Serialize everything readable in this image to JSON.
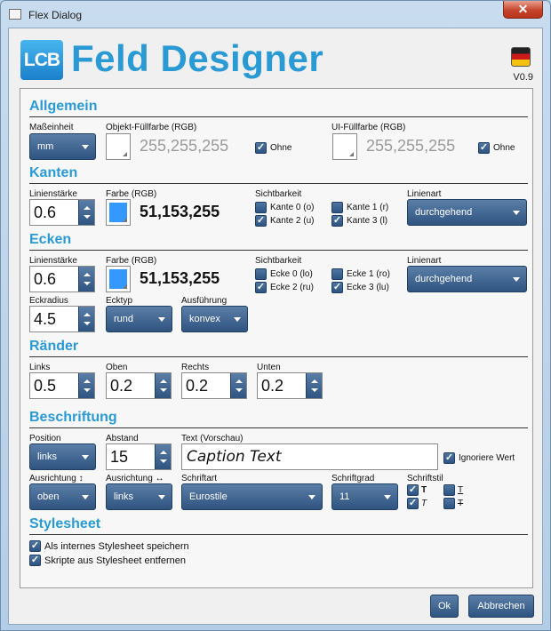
{
  "window": {
    "title": "Flex Dialog",
    "close_label": "✕"
  },
  "header": {
    "logo": "LCB",
    "title": "Feld Designer",
    "version": "V0.9"
  },
  "sections": {
    "allgemein": "Allgemein",
    "kanten": "Kanten",
    "ecken": "Ecken",
    "raender": "Ränder",
    "beschriftung": "Beschriftung",
    "stylesheet": "Stylesheet"
  },
  "allgemein": {
    "unit_label": "Maßeinheit",
    "unit_value": "mm",
    "obj_fill_label": "Objekt-Füllfarbe (RGB)",
    "obj_fill_value": "255,255,255",
    "obj_fill_color": "#ffffff",
    "obj_none_label": "Ohne",
    "obj_none_checked": true,
    "ui_fill_label": "UI-Füllfarbe (RGB)",
    "ui_fill_value": "255,255,255",
    "ui_fill_color": "#ffffff",
    "ui_none_label": "Ohne",
    "ui_none_checked": true
  },
  "kanten": {
    "width_label": "Linienstärke",
    "width_value": "0.6",
    "color_label": "Farbe (RGB)",
    "color_value": "51,153,255",
    "color_hex": "#3399ff",
    "vis_label": "Sichtbarkeit",
    "vis": [
      {
        "label": "Kante 0 (o)",
        "checked": false
      },
      {
        "label": "Kante 1 (r)",
        "checked": false
      },
      {
        "label": "Kante 2 (u)",
        "checked": true
      },
      {
        "label": "Kante 3 (l)",
        "checked": true
      }
    ],
    "style_label": "Linienart",
    "style_value": "durchgehend"
  },
  "ecken": {
    "width_label": "Linienstärke",
    "width_value": "0.6",
    "color_label": "Farbe (RGB)",
    "color_value": "51,153,255",
    "color_hex": "#3399ff",
    "vis_label": "Sichtbarkeit",
    "vis": [
      {
        "label": "Ecke 0 (lo)",
        "checked": false
      },
      {
        "label": "Ecke 1 (ro)",
        "checked": false
      },
      {
        "label": "Ecke 2 (ru)",
        "checked": true
      },
      {
        "label": "Ecke 3 (lu)",
        "checked": true
      }
    ],
    "style_label": "Linienart",
    "style_value": "durchgehend",
    "radius_label": "Eckradius",
    "radius_value": "4.5",
    "type_label": "Ecktyp",
    "type_value": "rund",
    "exec_label": "Ausführung",
    "exec_value": "konvex"
  },
  "raender": {
    "left_label": "Links",
    "left_value": "0.5",
    "top_label": "Oben",
    "top_value": "0.2",
    "right_label": "Rechts",
    "right_value": "0.2",
    "bottom_label": "Unten",
    "bottom_value": "0.2"
  },
  "beschriftung": {
    "pos_label": "Position",
    "pos_value": "links",
    "dist_label": "Abstand",
    "dist_value": "15",
    "text_label": "Text (Vorschau)",
    "text_value": "Caption Text",
    "ignore_label": "Ignoriere Wert",
    "ignore_checked": true,
    "valign_label": "Ausrichtung ↕",
    "valign_value": "oben",
    "halign_label": "Ausrichtung ↔",
    "halign_value": "links",
    "font_label": "Schriftart",
    "font_value": "Eurostile",
    "size_label": "Schriftgrad",
    "size_value": "11",
    "style_label": "Schriftstil",
    "styles": [
      {
        "label": "T",
        "checked": true
      },
      {
        "label": "T",
        "checked": false
      },
      {
        "label": "T",
        "checked": true
      },
      {
        "label": "T",
        "checked": false
      }
    ]
  },
  "stylesheet": {
    "opt1": "Als internes Stylesheet speichern",
    "opt1_checked": true,
    "opt2": "Skripte aus Stylesheet entfernen",
    "opt2_checked": true
  },
  "footer": {
    "ok": "Ok",
    "cancel": "Abbrechen"
  }
}
